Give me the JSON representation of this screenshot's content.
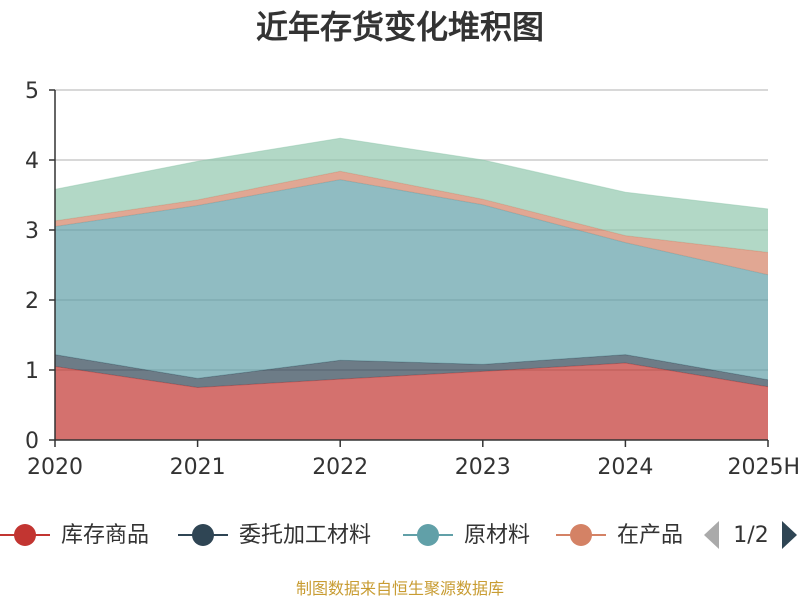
{
  "chart_data": {
    "type": "area",
    "stacked": true,
    "title": "近年存货变化堆积图",
    "xlabel": "",
    "ylabel": "",
    "categories": [
      "2020",
      "2021",
      "2022",
      "2023",
      "2024",
      "2025H"
    ],
    "ylim": [
      0,
      5
    ],
    "yticks": [
      "0",
      "1",
      "2",
      "3",
      "4",
      "5"
    ],
    "grid": true,
    "series": [
      {
        "name": "库存商品",
        "color": "#c23531",
        "values": [
          1.05,
          0.75,
          0.87,
          0.98,
          1.1,
          0.76
        ]
      },
      {
        "name": "委托加工材料",
        "color": "#2f4554",
        "values": [
          0.17,
          0.13,
          0.27,
          0.1,
          0.12,
          0.1
        ]
      },
      {
        "name": "原材料",
        "color": "#61a0a8",
        "values": [
          1.83,
          2.47,
          2.58,
          2.28,
          1.6,
          1.5
        ]
      },
      {
        "name": "在产品",
        "color": "#d48265",
        "values": [
          0.08,
          0.08,
          0.12,
          0.08,
          0.1,
          0.32
        ]
      },
      {
        "name": "",
        "color": "#91c7ae",
        "values": [
          0.45,
          0.55,
          0.47,
          0.56,
          0.62,
          0.62
        ]
      }
    ],
    "legend": {
      "position": "bottom",
      "items": [
        "库存商品",
        "委托加工材料",
        "原材料",
        "在产品"
      ],
      "page": "1/2"
    }
  },
  "source_text": "制图数据来自恒生聚源数据库"
}
